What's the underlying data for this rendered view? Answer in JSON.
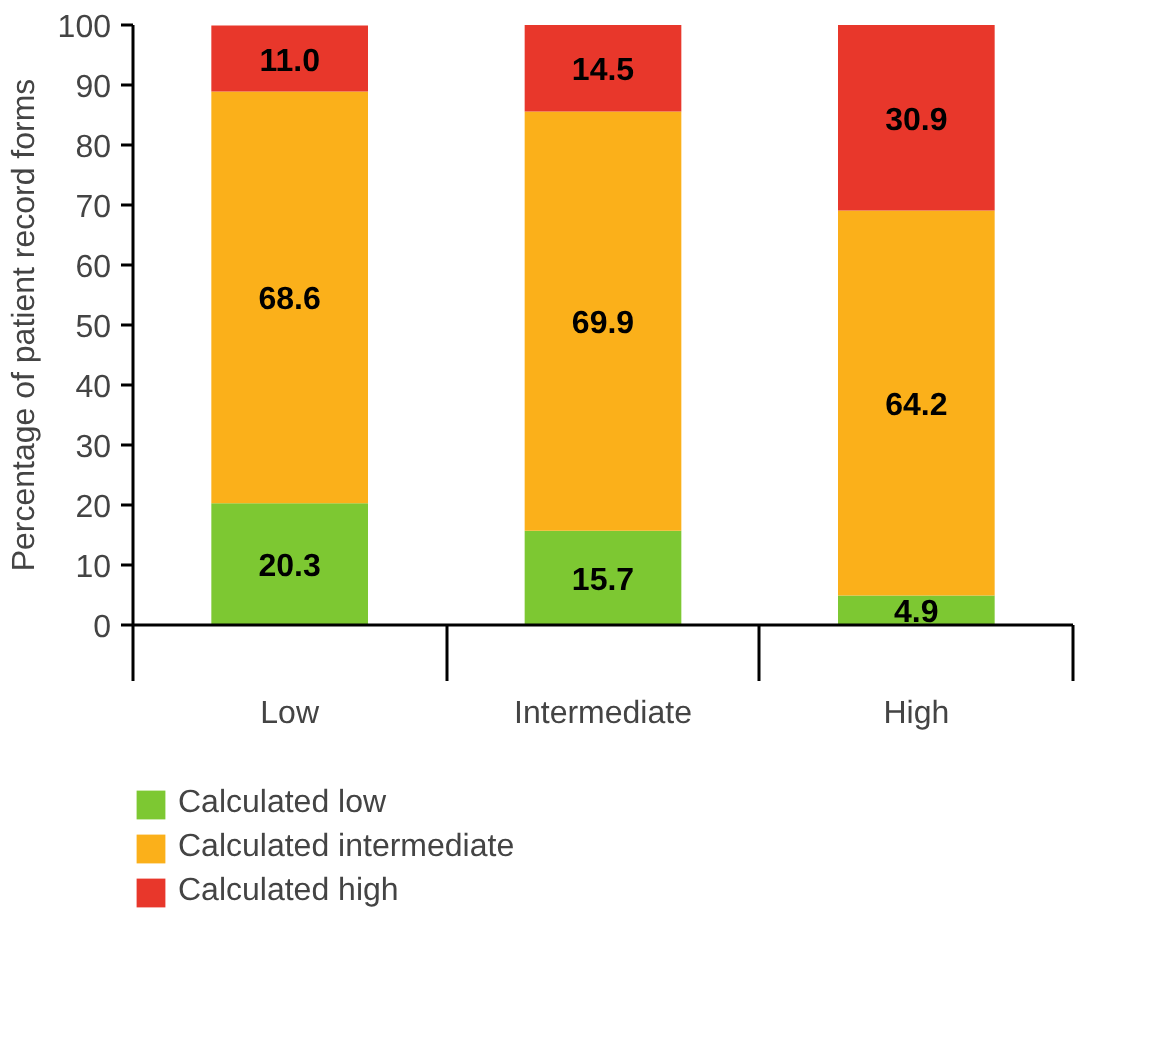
{
  "chart_data": {
    "type": "bar",
    "stacked": true,
    "ylabel": "Percentage of patient record forms",
    "categories": [
      "Low",
      "Intermediate",
      "High"
    ],
    "series": [
      {
        "name": "Calculated low",
        "color": "#7dc832",
        "values": [
          20.3,
          15.7,
          4.9
        ],
        "value_labels": [
          "20.3",
          "15.7",
          "4.9"
        ]
      },
      {
        "name": "Calculated intermediate",
        "color": "#fbb01a",
        "values": [
          68.6,
          69.9,
          64.2
        ],
        "value_labels": [
          "68.6",
          "69.9",
          "64.2"
        ]
      },
      {
        "name": "Calculated high",
        "color": "#e8372b",
        "values": [
          11.0,
          14.5,
          30.9
        ],
        "value_labels": [
          "11.0",
          "14.5",
          "30.9"
        ]
      }
    ],
    "ylim": [
      0,
      100
    ],
    "yticks": [
      0,
      10,
      20,
      30,
      40,
      50,
      60,
      70,
      80,
      90,
      100
    ],
    "grid": false,
    "legend": "bottom"
  }
}
